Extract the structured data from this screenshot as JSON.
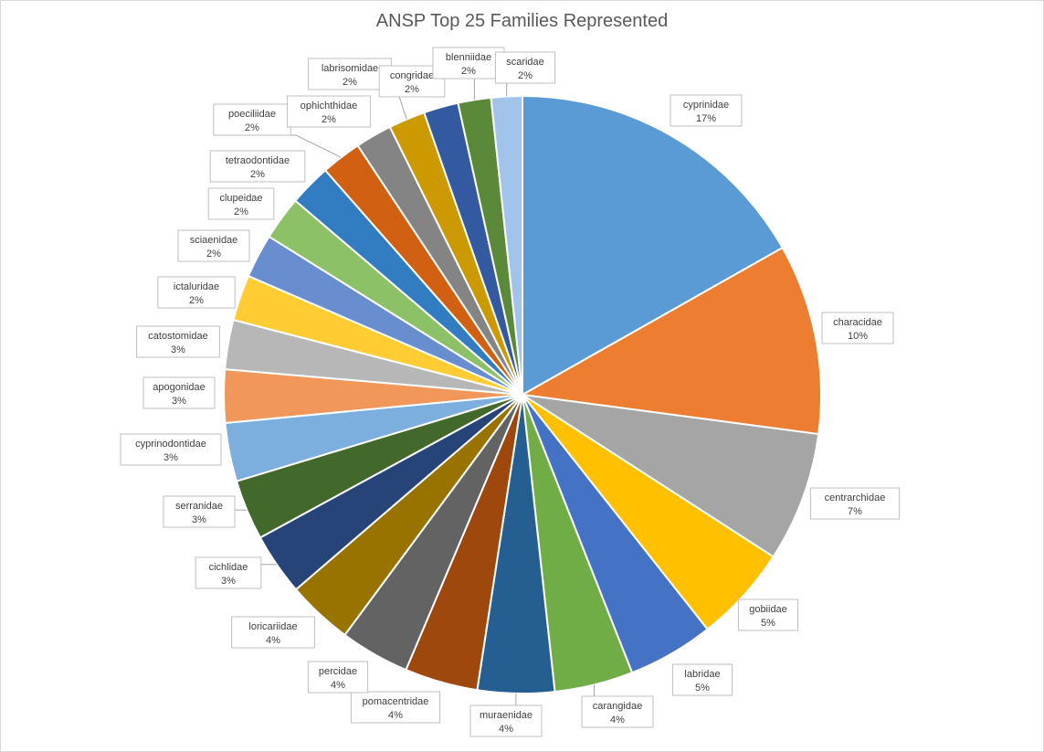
{
  "chart_data": {
    "type": "pie",
    "title": "ANSP Top 25 Families Represented",
    "start_angle_deg": 0,
    "direction": "clockwise",
    "legend": "none",
    "data_labels": "category and percentage, boxed with leader lines",
    "slices": [
      {
        "label": "cyprinidae",
        "pct_label": "17%",
        "value": 17.0,
        "color": "#5B9BD5"
      },
      {
        "label": "characidae",
        "pct_label": "10%",
        "value": 10.4,
        "color": "#ED7D31"
      },
      {
        "label": "centrarchidae",
        "pct_label": "7%",
        "value": 7.1,
        "color": "#A5A5A5"
      },
      {
        "label": "gobiidae",
        "pct_label": "5%",
        "value": 5.3,
        "color": "#FFC000"
      },
      {
        "label": "labridae",
        "pct_label": "5%",
        "value": 4.7,
        "color": "#4472C4"
      },
      {
        "label": "carangidae",
        "pct_label": "4%",
        "value": 4.3,
        "color": "#70AD47"
      },
      {
        "label": "muraenidae",
        "pct_label": "4%",
        "value": 4.2,
        "color": "#255E91"
      },
      {
        "label": "pomacentridae",
        "pct_label": "4%",
        "value": 4.0,
        "color": "#9E480E"
      },
      {
        "label": "percidae",
        "pct_label": "4%",
        "value": 3.8,
        "color": "#636363"
      },
      {
        "label": "loricariidae",
        "pct_label": "4%",
        "value": 3.6,
        "color": "#997300"
      },
      {
        "label": "cichlidae",
        "pct_label": "3%",
        "value": 3.4,
        "color": "#264478"
      },
      {
        "label": "serranidae",
        "pct_label": "3%",
        "value": 3.3,
        "color": "#43682B"
      },
      {
        "label": "cyprinodontidae",
        "pct_label": "3%",
        "value": 3.2,
        "color": "#7CAFDD"
      },
      {
        "label": "apogonidae",
        "pct_label": "3%",
        "value": 2.9,
        "color": "#F1975A"
      },
      {
        "label": "catostomidae",
        "pct_label": "3%",
        "value": 2.7,
        "color": "#B7B7B7"
      },
      {
        "label": "ictaluridae",
        "pct_label": "2%",
        "value": 2.5,
        "color": "#FFCD33"
      },
      {
        "label": "sciaenidae",
        "pct_label": "2%",
        "value": 2.4,
        "color": "#698ED0"
      },
      {
        "label": "clupeidae",
        "pct_label": "2%",
        "value": 2.4,
        "color": "#8CC168"
      },
      {
        "label": "tetraodontidae",
        "pct_label": "2%",
        "value": 2.3,
        "color": "#327DC2"
      },
      {
        "label": "poeciliidae",
        "pct_label": "2%",
        "value": 2.2,
        "color": "#D26012"
      },
      {
        "label": "ophichthidae",
        "pct_label": "2%",
        "value": 2.0,
        "color": "#848484"
      },
      {
        "label": "labrisomidae",
        "pct_label": "2%",
        "value": 2.0,
        "color": "#CC9A00"
      },
      {
        "label": "congridae",
        "pct_label": "2%",
        "value": 1.9,
        "color": "#335AA1"
      },
      {
        "label": "blenniidae",
        "pct_label": "2%",
        "value": 1.8,
        "color": "#5A8A39"
      },
      {
        "label": "scaridae",
        "pct_label": "2%",
        "value": 1.7,
        "color": "#A3C4EA"
      }
    ]
  }
}
